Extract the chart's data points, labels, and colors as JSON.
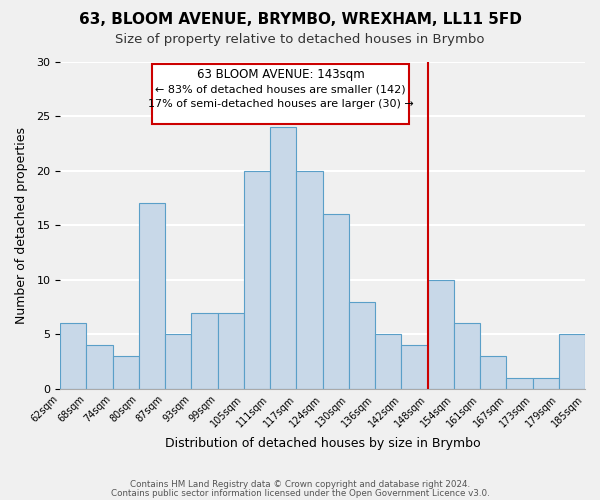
{
  "title": "63, BLOOM AVENUE, BRYMBO, WREXHAM, LL11 5FD",
  "subtitle": "Size of property relative to detached houses in Brymbo",
  "xlabel": "Distribution of detached houses by size in Brymbo",
  "ylabel": "Number of detached properties",
  "bar_color": "#c8d8e8",
  "bar_edge_color": "#5a9fc8",
  "bins": [
    "62sqm",
    "68sqm",
    "74sqm",
    "80sqm",
    "87sqm",
    "93sqm",
    "99sqm",
    "105sqm",
    "111sqm",
    "117sqm",
    "124sqm",
    "130sqm",
    "136sqm",
    "142sqm",
    "148sqm",
    "154sqm",
    "161sqm",
    "167sqm",
    "173sqm",
    "179sqm",
    "185sqm"
  ],
  "values": [
    6,
    4,
    3,
    17,
    5,
    7,
    7,
    20,
    24,
    20,
    16,
    8,
    5,
    4,
    10,
    6,
    3,
    1,
    1,
    5
  ],
  "ylim": [
    0,
    30
  ],
  "yticks": [
    0,
    5,
    10,
    15,
    20,
    25,
    30
  ],
  "vline_x": 13.5,
  "vline_color": "#cc0000",
  "annotation_title": "63 BLOOM AVENUE: 143sqm",
  "annotation_line1": "← 83% of detached houses are smaller (142)",
  "annotation_line2": "17% of semi-detached houses are larger (30) →",
  "annotation_box_edge": "#cc0000",
  "footer1": "Contains HM Land Registry data © Crown copyright and database right 2024.",
  "footer2": "Contains public sector information licensed under the Open Government Licence v3.0.",
  "background_color": "#f0f0f0",
  "grid_color": "#ffffff"
}
